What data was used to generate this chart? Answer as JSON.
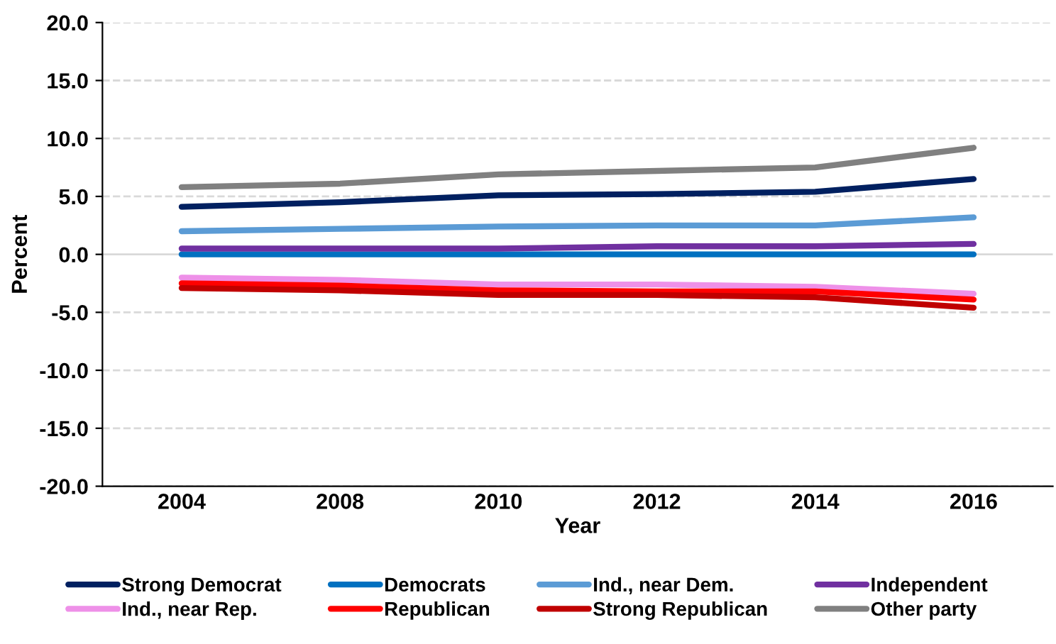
{
  "chart_data": {
    "type": "line",
    "xlabel": "Year",
    "ylabel": "Percent",
    "categories": [
      "2004",
      "2008",
      "2010",
      "2012",
      "2014",
      "2016"
    ],
    "series": [
      {
        "name": "Strong Democrat",
        "color": "#002060",
        "values": [
          4.1,
          4.5,
          5.1,
          5.2,
          5.4,
          6.5
        ]
      },
      {
        "name": "Democrats",
        "color": "#0070c0",
        "values": [
          0.0,
          0.0,
          0.0,
          0.0,
          0.0,
          0.0
        ]
      },
      {
        "name": "Ind., near Dem.",
        "color": "#5b9bd5",
        "values": [
          2.0,
          2.2,
          2.4,
          2.5,
          2.5,
          3.2
        ]
      },
      {
        "name": "Independent",
        "color": "#7030a0",
        "values": [
          0.5,
          0.5,
          0.5,
          0.7,
          0.7,
          0.9
        ]
      },
      {
        "name": "Ind., near Rep.",
        "color": "#ee90e8",
        "values": [
          -2.0,
          -2.2,
          -2.6,
          -2.6,
          -2.8,
          -3.4
        ]
      },
      {
        "name": "Republican",
        "color": "#ff0000",
        "values": [
          -2.5,
          -2.7,
          -3.1,
          -3.2,
          -3.2,
          -3.9
        ]
      },
      {
        "name": "Strong Republican",
        "color": "#c00000",
        "values": [
          -2.9,
          -3.1,
          -3.5,
          -3.5,
          -3.7,
          -4.6
        ]
      },
      {
        "name": "Other party",
        "color": "#808080",
        "values": [
          5.8,
          6.1,
          6.9,
          7.2,
          7.5,
          9.2
        ]
      }
    ],
    "ylim": [
      -20,
      20
    ],
    "yticks": [
      {
        "value": -20,
        "label": "-20.0"
      },
      {
        "value": -15,
        "label": "-15.0"
      },
      {
        "value": -10,
        "label": "-10.0"
      },
      {
        "value": -5,
        "label": "-5.0"
      },
      {
        "value": 0,
        "label": "0.0"
      },
      {
        "value": 5,
        "label": "5.0"
      },
      {
        "value": 10,
        "label": "10.0"
      },
      {
        "value": 15,
        "label": "15.0"
      },
      {
        "value": 20,
        "label": "20.0"
      }
    ],
    "grid": "y",
    "legend": "bottom",
    "marker": "none",
    "line_style": "solid"
  }
}
